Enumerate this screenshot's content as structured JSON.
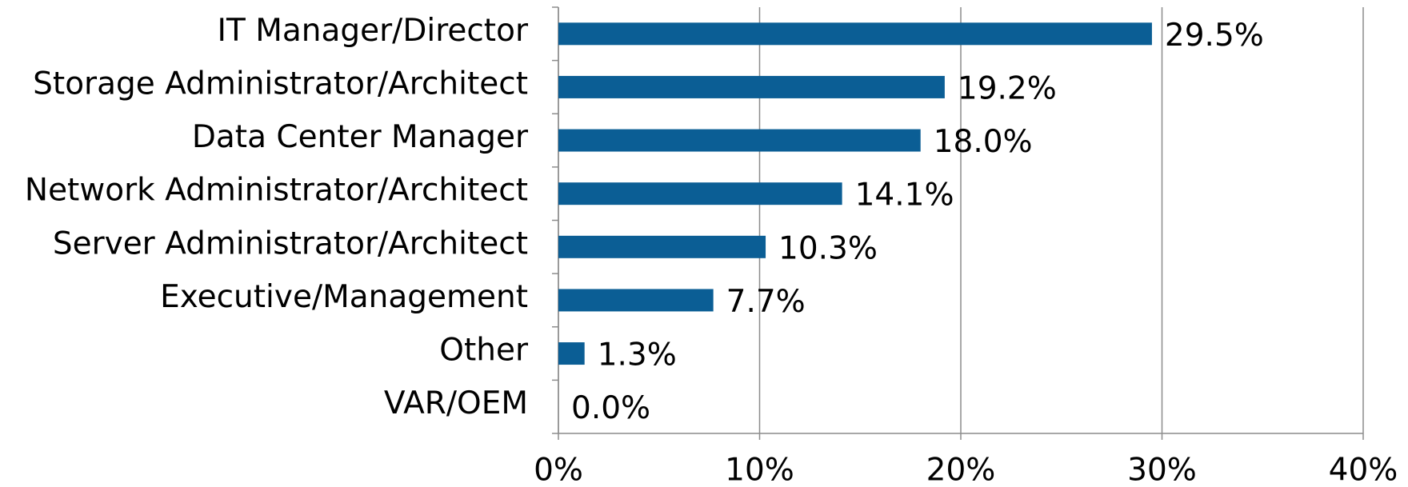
{
  "chart_data": {
    "type": "bar",
    "orientation": "horizontal",
    "categories": [
      "IT Manager/Director",
      "Storage Administrator/Architect",
      "Data Center Manager",
      "Network Administrator/Architect",
      "Server Administrator/Architect",
      "Executive/Management",
      "Other",
      "VAR/OEM"
    ],
    "values": [
      29.5,
      19.2,
      18.0,
      14.1,
      10.3,
      7.7,
      1.3,
      0.0
    ],
    "value_labels": [
      "29.5%",
      "19.2%",
      "18.0%",
      "14.1%",
      "10.3%",
      "7.7%",
      "1.3%",
      "0.0%"
    ],
    "color": "#0b5e95",
    "xlim": [
      0,
      40
    ],
    "xticks": [
      {
        "value": 0,
        "label": "0%"
      },
      {
        "value": 10,
        "label": "10%"
      },
      {
        "value": 20,
        "label": "20%"
      },
      {
        "value": 30,
        "label": "30%"
      },
      {
        "value": 40,
        "label": "40%"
      }
    ],
    "grid": true
  }
}
